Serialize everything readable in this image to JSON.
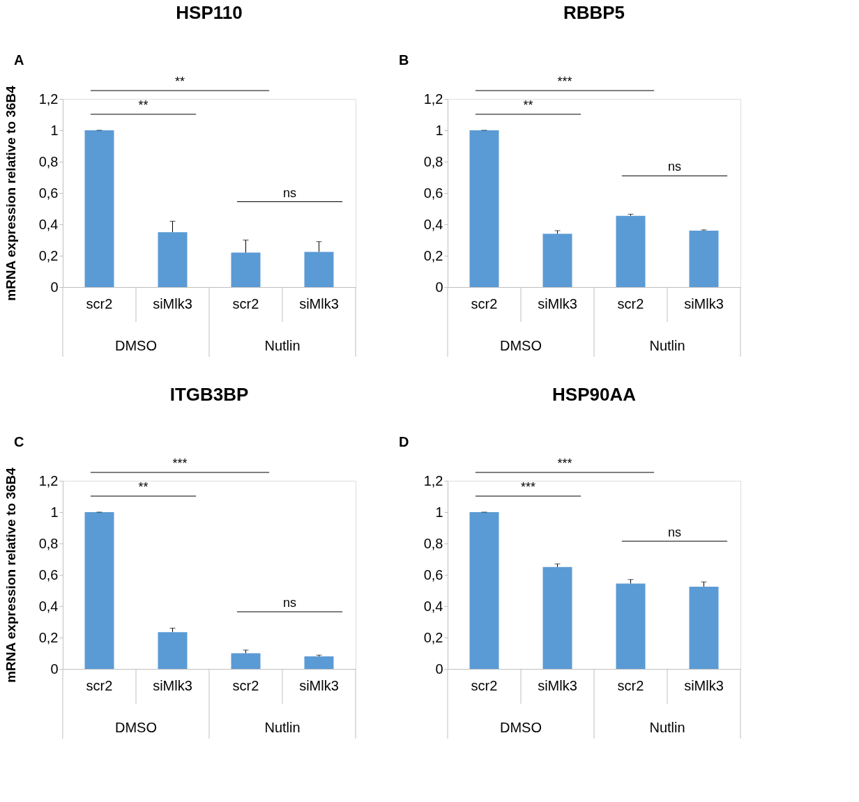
{
  "chart_data": [
    {
      "type": "bar",
      "title": "HSP110",
      "ylabel": "mRNA expression relative to 36B4",
      "categories": [
        "scr2",
        "siMlk3",
        "scr2",
        "siMlk3"
      ],
      "values": [
        1.0,
        0.35,
        0.22,
        0.225
      ],
      "errors": [
        [
          1.0,
          1.0
        ],
        [
          0.35,
          0.42
        ],
        [
          0.22,
          0.3
        ],
        [
          0.225,
          0.29
        ]
      ],
      "color": "#5b9bd5",
      "ylim": [
        0,
        1.2
      ],
      "yticks": [
        0,
        {
          "value": 0.2,
          "label": "0,2"
        },
        {
          "value": 0.4,
          "label": "0,4"
        },
        {
          "value": 0.6,
          "label": "0,6"
        },
        {
          "value": 0.8,
          "label": "0,8"
        },
        1,
        {
          "value": 1.2,
          "label": "1,2"
        }
      ],
      "grid": false,
      "annotations": [
        "A",
        "DMSO",
        "Nutlin",
        "**",
        "**",
        "ns"
      ]
    },
    {
      "type": "bar",
      "title": "RBBP5",
      "categories": [
        "scr2",
        "siMlk3",
        "scr2",
        "siMlk3"
      ],
      "values": [
        1.0,
        0.34,
        0.455,
        0.36
      ],
      "errors": [
        [
          1.0,
          1.0
        ],
        [
          0.34,
          0.36
        ],
        [
          0.455,
          0.465
        ],
        [
          0.36,
          0.365
        ]
      ],
      "color": "#5b9bd5",
      "ylim": [
        0,
        1.2
      ],
      "yticks": [
        0,
        {
          "value": 0.2,
          "label": "0,2"
        },
        {
          "value": 0.4,
          "label": "0,4"
        },
        {
          "value": 0.6,
          "label": "0,6"
        },
        {
          "value": 0.8,
          "label": "0,8"
        },
        1,
        {
          "value": 1.2,
          "label": "1,2"
        }
      ],
      "grid": false,
      "annotations": [
        "B",
        "DMSO",
        "Nutlin",
        "***",
        "**",
        "ns"
      ]
    },
    {
      "type": "bar",
      "title": "ITGB3BP",
      "ylabel": "mRNA expression relative to 36B4",
      "categories": [
        "scr2",
        "siMlk3",
        "scr2",
        "siMlk3"
      ],
      "values": [
        1.0,
        0.235,
        0.1,
        0.08
      ],
      "errors": [
        [
          1.0,
          1.0
        ],
        [
          0.235,
          0.26
        ],
        [
          0.1,
          0.12
        ],
        [
          0.08,
          0.088
        ]
      ],
      "color": "#5b9bd5",
      "ylim": [
        0,
        1.2
      ],
      "yticks": [
        0,
        {
          "value": 0.2,
          "label": "0,2"
        },
        {
          "value": 0.4,
          "label": "0,4"
        },
        {
          "value": 0.6,
          "label": "0,6"
        },
        {
          "value": 0.8,
          "label": "0,8"
        },
        1,
        {
          "value": 1.2,
          "label": "1,2"
        }
      ],
      "grid": false,
      "annotations": [
        "C",
        "DMSO",
        "Nutlin",
        "***",
        "**",
        "ns"
      ]
    },
    {
      "type": "bar",
      "title": "HSP90AA",
      "categories": [
        "scr2",
        "siMlk3",
        "scr2",
        "siMlk3"
      ],
      "values": [
        1.0,
        0.65,
        0.545,
        0.525
      ],
      "errors": [
        [
          1.0,
          1.0
        ],
        [
          0.65,
          0.67
        ],
        [
          0.545,
          0.57
        ],
        [
          0.525,
          0.555
        ]
      ],
      "color": "#5b9bd5",
      "ylim": [
        0,
        1.2
      ],
      "yticks": [
        0,
        {
          "value": 0.2,
          "label": "0,2"
        },
        {
          "value": 0.4,
          "label": "0,4"
        },
        {
          "value": 0.6,
          "label": "0,6"
        },
        {
          "value": 0.8,
          "label": "0,8"
        },
        1,
        {
          "value": 1.2,
          "label": "1,2"
        }
      ],
      "grid": false,
      "annotations": [
        "D",
        "DMSO",
        "Nutlin",
        "***",
        "***",
        "ns"
      ]
    }
  ]
}
